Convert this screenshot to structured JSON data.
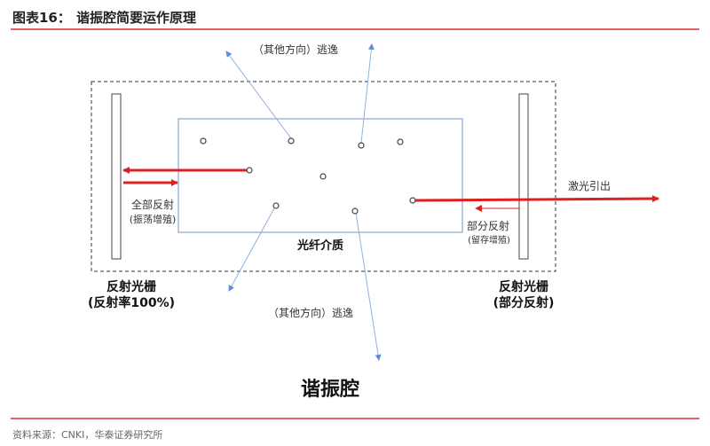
{
  "header": {
    "figure_label": "图表16：",
    "title": "谐振腔简要运作原理"
  },
  "diagram": {
    "escape_top": "（其他方向）逃逸",
    "escape_bottom": "（其他方向）逃逸",
    "full_reflect": "全部反射",
    "full_reflect_sub": "(振荡增殖)",
    "medium": "光纤介质",
    "laser_out": "激光引出",
    "partial_reflect": "部分反射",
    "partial_reflect_sub": "(留存增殖)",
    "left_grating": "反射光栅",
    "left_grating_sub": "(反射率100%)",
    "right_grating": "反射光栅",
    "right_grating_sub": "(部分反射)",
    "cavity": "谐振腔"
  },
  "colors": {
    "accent_red": "#e02020",
    "light_blue": "#7aa6d6",
    "box_blue": "#6f95c4"
  },
  "footer": {
    "source": "资料来源：CNKI，华泰证券研究所"
  }
}
